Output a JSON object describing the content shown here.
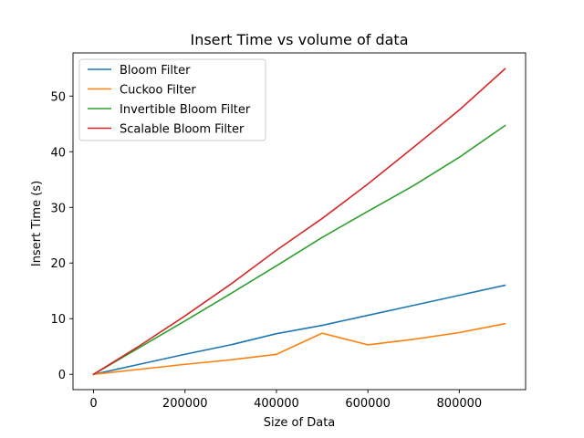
{
  "chart_data": {
    "type": "line",
    "title": "Insert Time vs volume of data",
    "xlabel": "Size of Data",
    "ylabel": "Insert Time (s)",
    "xlim": [
      -45000,
      945000
    ],
    "ylim": [
      -2.75,
      57.75
    ],
    "xticks": [
      0,
      200000,
      400000,
      600000,
      800000
    ],
    "yticks": [
      0,
      10,
      20,
      30,
      40,
      50
    ],
    "grid": false,
    "legend_position": "top-left",
    "x": [
      0,
      100000,
      200000,
      300000,
      400000,
      500000,
      600000,
      700000,
      800000,
      900000
    ],
    "series": [
      {
        "name": "Bloom Filter",
        "color": "#1f77b4",
        "values": [
          0,
          1.8,
          3.6,
          5.3,
          7.3,
          8.8,
          10.6,
          12.4,
          14.2,
          16.0
        ]
      },
      {
        "name": "Cuckoo Filter",
        "color": "#ff7f0e",
        "values": [
          0,
          0.9,
          1.8,
          2.6,
          3.6,
          7.4,
          5.3,
          6.3,
          7.5,
          9.1
        ]
      },
      {
        "name": "Invertible Bloom Filter",
        "color": "#2ca02c",
        "values": [
          0,
          4.8,
          9.6,
          14.5,
          19.5,
          24.6,
          29.3,
          33.9,
          39.0,
          44.7
        ]
      },
      {
        "name": "Scalable Bloom Filter",
        "color": "#d62728",
        "values": [
          0,
          5.1,
          10.5,
          16.2,
          22.3,
          28.0,
          34.2,
          40.8,
          47.5,
          54.9
        ]
      }
    ]
  }
}
